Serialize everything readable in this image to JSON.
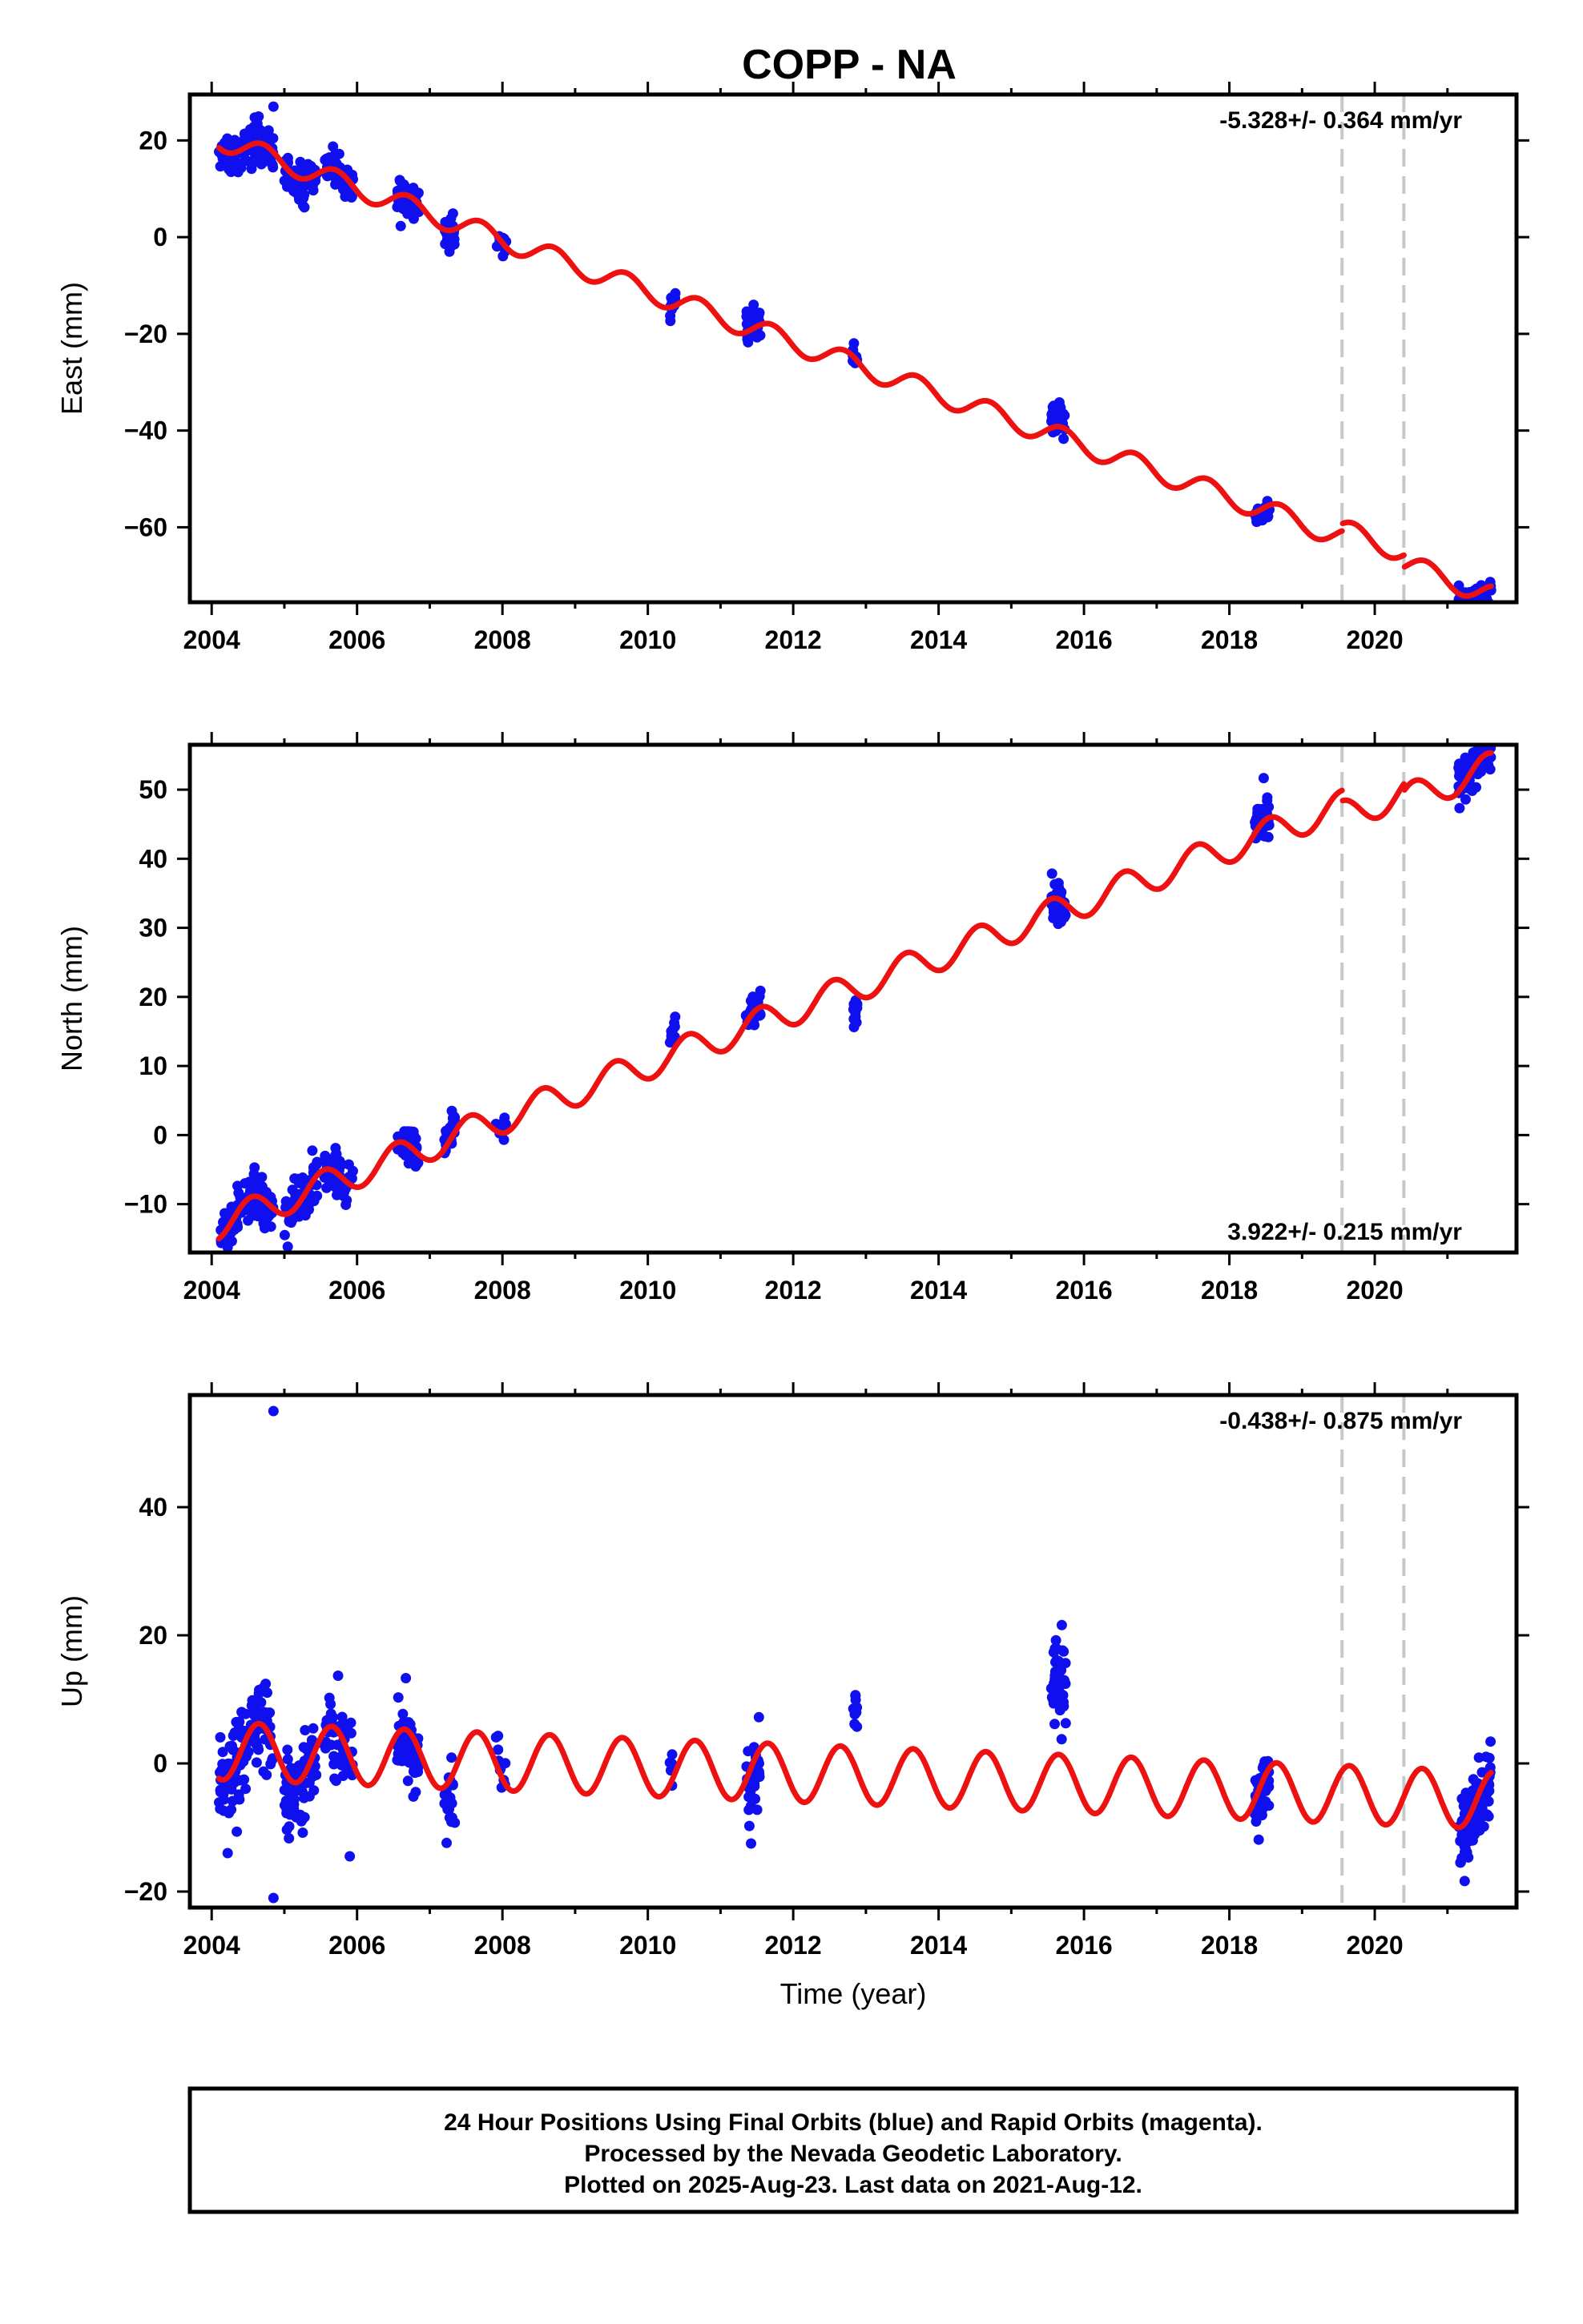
{
  "title": "COPP - NA",
  "footer": {
    "line1": "24 Hour Positions Using Final Orbits (blue) and Rapid Orbits (magenta).",
    "line2": "Processed by the Nevada Geodetic Laboratory.",
    "line3": "Plotted on 2025-Aug-23. Last data on 2021-Aug-12."
  },
  "colors": {
    "observations": "#1010ee",
    "model": "#ee1111",
    "offset_lines": "#c8c8c8",
    "frame": "#000000"
  },
  "chart_data": [
    {
      "type": "scatter",
      "ylabel": "East (mm)",
      "xlabel": "",
      "rate_label": "-5.328+/- 0.364 mm/yr",
      "rate_position": "top-right",
      "xlim": [
        2003.7,
        2021.95
      ],
      "ylim": [
        -75.5,
        29.5
      ],
      "xticks": [
        2004,
        2006,
        2008,
        2010,
        2012,
        2014,
        2016,
        2018,
        2020
      ],
      "yticks": [
        -60,
        -40,
        -20,
        0,
        20
      ],
      "offset_lines": [
        2019.55,
        2020.4
      ],
      "model": {
        "rate": -5.328,
        "value_at_2004": 20.8,
        "annual_amplitude": 2.2,
        "annual_phase_year": 2004.7,
        "steps": [
          {
            "at": 2019.55,
            "value": 1.5
          },
          {
            "at": 2020.4,
            "value": -2.5
          }
        ]
      },
      "observation_clusters": [
        {
          "start": 2004.1,
          "end": 2004.85,
          "center_offset": 0,
          "spread": 2.0,
          "count": 120
        },
        {
          "start": 2005.0,
          "end": 2005.45,
          "center_offset": -1.0,
          "spread": 2.0,
          "count": 70
        },
        {
          "start": 2005.55,
          "end": 2005.95,
          "center_offset": 0,
          "spread": 1.5,
          "count": 60
        },
        {
          "start": 2006.55,
          "end": 2006.85,
          "center_offset": -1.0,
          "spread": 1.8,
          "count": 60
        },
        {
          "start": 2007.2,
          "end": 2007.35,
          "center_offset": -0.5,
          "spread": 1.5,
          "count": 25
        },
        {
          "start": 2007.9,
          "end": 2008.05,
          "center_offset": 0.5,
          "spread": 1.5,
          "count": 12
        },
        {
          "start": 2010.3,
          "end": 2010.38,
          "center_offset": 0.5,
          "spread": 1.2,
          "count": 12
        },
        {
          "start": 2011.35,
          "end": 2011.55,
          "center_offset": 1.5,
          "spread": 1.5,
          "count": 40
        },
        {
          "start": 2012.82,
          "end": 2012.88,
          "center_offset": 0.5,
          "spread": 1.0,
          "count": 12
        },
        {
          "start": 2015.55,
          "end": 2015.75,
          "center_offset": 2.0,
          "spread": 1.5,
          "count": 45
        },
        {
          "start": 2018.35,
          "end": 2018.55,
          "center_offset": -1.0,
          "spread": 1.2,
          "count": 45
        },
        {
          "start": 2021.15,
          "end": 2021.6,
          "center_offset": -1.0,
          "spread": 1.5,
          "count": 80
        }
      ],
      "outliers": [
        {
          "x": 2004.85,
          "y": 27
        }
      ]
    },
    {
      "type": "scatter",
      "ylabel": "North (mm)",
      "xlabel": "",
      "rate_label": "3.922+/- 0.215 mm/yr",
      "rate_position": "bottom-right",
      "xlim": [
        2003.7,
        2021.95
      ],
      "ylim": [
        -17,
        56.5
      ],
      "xticks": [
        2004,
        2006,
        2008,
        2010,
        2012,
        2014,
        2016,
        2018,
        2020
      ],
      "yticks": [
        -10,
        0,
        10,
        20,
        30,
        40,
        50
      ],
      "offset_lines": [
        2019.55,
        2020.4
      ],
      "model": {
        "rate": 3.922,
        "value_at_2004": -13.3,
        "annual_amplitude": 2.2,
        "annual_phase_year": 2004.55,
        "steps": [
          {
            "at": 2019.55,
            "value": -1.5
          },
          {
            "at": 2020.4,
            "value": -1.0
          }
        ]
      },
      "observation_clusters": [
        {
          "start": 2004.1,
          "end": 2004.85,
          "center_offset": 0,
          "spread": 1.6,
          "count": 110
        },
        {
          "start": 2005.0,
          "end": 2005.45,
          "center_offset": 0,
          "spread": 1.6,
          "count": 70
        },
        {
          "start": 2005.55,
          "end": 2005.95,
          "center_offset": 0,
          "spread": 1.5,
          "count": 55
        },
        {
          "start": 2006.55,
          "end": 2006.85,
          "center_offset": 0,
          "spread": 1.5,
          "count": 55
        },
        {
          "start": 2007.2,
          "end": 2007.35,
          "center_offset": 1.0,
          "spread": 1.2,
          "count": 25
        },
        {
          "start": 2007.9,
          "end": 2008.05,
          "center_offset": 0.5,
          "spread": 1.0,
          "count": 12
        },
        {
          "start": 2010.3,
          "end": 2010.38,
          "center_offset": 3.0,
          "spread": 1.2,
          "count": 12
        },
        {
          "start": 2011.35,
          "end": 2011.55,
          "center_offset": 0,
          "spread": 1.0,
          "count": 40
        },
        {
          "start": 2012.82,
          "end": 2012.88,
          "center_offset": -2.0,
          "spread": 1.0,
          "count": 12
        },
        {
          "start": 2015.55,
          "end": 2015.75,
          "center_offset": -0.5,
          "spread": 1.8,
          "count": 45
        },
        {
          "start": 2018.35,
          "end": 2018.55,
          "center_offset": 1.0,
          "spread": 1.5,
          "count": 45
        },
        {
          "start": 2021.15,
          "end": 2021.6,
          "center_offset": 0.5,
          "spread": 1.8,
          "count": 80
        }
      ],
      "outliers": []
    },
    {
      "type": "scatter",
      "ylabel": "Up (mm)",
      "xlabel": "Time (year)",
      "rate_label": "-0.438+/- 0.875 mm/yr",
      "rate_position": "top-right",
      "xlim": [
        2003.7,
        2021.95
      ],
      "ylim": [
        -22.5,
        57.5
      ],
      "xticks": [
        2004,
        2006,
        2008,
        2010,
        2012,
        2014,
        2016,
        2018,
        2020
      ],
      "yticks": [
        -20,
        0,
        20,
        40
      ],
      "offset_lines": [
        2019.55,
        2020.4
      ],
      "model": {
        "rate": -0.438,
        "value_at_2004": 2.0,
        "annual_amplitude": 4.5,
        "annual_phase_year": 2004.65,
        "steps": [
          {
            "at": 2019.55,
            "value": 0
          },
          {
            "at": 2020.4,
            "value": 0
          }
        ]
      },
      "observation_clusters": [
        {
          "start": 2004.1,
          "end": 2004.85,
          "center_offset": 0,
          "spread": 3.5,
          "count": 120
        },
        {
          "start": 2005.0,
          "end": 2005.45,
          "center_offset": -1.0,
          "spread": 3.5,
          "count": 80
        },
        {
          "start": 2005.55,
          "end": 2005.95,
          "center_offset": -1.0,
          "spread": 3.5,
          "count": 60
        },
        {
          "start": 2006.55,
          "end": 2006.85,
          "center_offset": -2.0,
          "spread": 3.0,
          "count": 60
        },
        {
          "start": 2007.2,
          "end": 2007.35,
          "center_offset": -3.0,
          "spread": 2.5,
          "count": 25
        },
        {
          "start": 2007.9,
          "end": 2008.05,
          "center_offset": 1.0,
          "spread": 2.0,
          "count": 12
        },
        {
          "start": 2010.3,
          "end": 2010.38,
          "center_offset": 2.0,
          "spread": 1.2,
          "count": 8
        },
        {
          "start": 2011.35,
          "end": 2011.55,
          "center_offset": -2.0,
          "spread": 2.5,
          "count": 40
        },
        {
          "start": 2012.82,
          "end": 2012.88,
          "center_offset": 8.0,
          "spread": 2.0,
          "count": 12
        },
        {
          "start": 2015.55,
          "end": 2015.75,
          "center_offset": 10.0,
          "spread": 3.5,
          "count": 50
        },
        {
          "start": 2018.35,
          "end": 2018.55,
          "center_offset": -2.0,
          "spread": 2.5,
          "count": 45
        },
        {
          "start": 2021.15,
          "end": 2021.6,
          "center_offset": -1.0,
          "spread": 3.0,
          "count": 90
        }
      ],
      "outliers": [
        {
          "x": 2004.85,
          "y": 55
        },
        {
          "x": 2004.85,
          "y": -21
        },
        {
          "x": 2004.22,
          "y": -14
        },
        {
          "x": 2011.42,
          "y": -12.5
        },
        {
          "x": 2005.9,
          "y": -14.5
        }
      ]
    }
  ]
}
